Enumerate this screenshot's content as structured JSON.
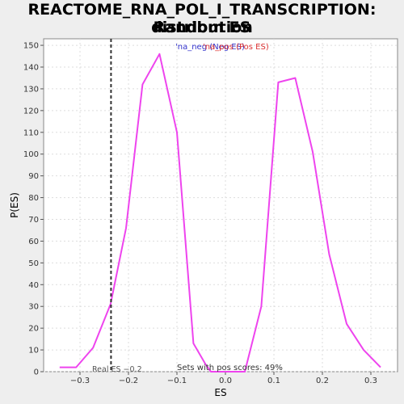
{
  "chart_data": {
    "type": "line",
    "title_line1": "REACTOME_RNA_POL_I_TRANSCRIPTION: Random ES",
    "title_line2": "distribution",
    "xlabel": "ES",
    "ylabel": "P(ES)",
    "xlim": [
      -0.375,
      0.355
    ],
    "ylim": [
      0,
      153
    ],
    "xticks": [
      -0.3,
      -0.2,
      -0.1,
      0.0,
      0.1,
      0.2,
      0.3
    ],
    "xtick_labels": [
      "−0.3",
      "−0.2",
      "−0.1",
      "0.0",
      "0.1",
      "0.2",
      "0.3"
    ],
    "yticks": [
      0,
      10,
      20,
      30,
      40,
      50,
      60,
      70,
      80,
      90,
      100,
      110,
      120,
      130,
      140,
      150
    ],
    "ytick_labels": [
      "0",
      "10",
      "20",
      "30",
      "40",
      "50",
      "60",
      "70",
      "80",
      "90",
      "100",
      "110",
      "120",
      "130",
      "140",
      "150"
    ],
    "grid": true,
    "legend": {
      "placement": "top-center",
      "entries": [
        {
          "label": "'na_neg (Neg ES)",
          "color": "#3333cc"
        },
        {
          "label": "'na_pos (Pos ES)",
          "color": "#dd3333"
        }
      ]
    },
    "series": [
      {
        "color": "#ee44ee",
        "x": [
          -0.342,
          -0.308,
          -0.273,
          -0.237,
          -0.205,
          -0.171,
          -0.136,
          -0.1,
          -0.066,
          -0.04,
          -0.03,
          0.04,
          0.074,
          0.109,
          0.144,
          0.18,
          0.214,
          0.25,
          0.285,
          0.32
        ],
        "y": [
          2,
          2,
          11,
          31,
          66,
          132,
          146,
          110,
          13,
          3,
          0,
          0,
          30,
          133,
          135,
          101,
          54,
          22,
          10,
          2
        ]
      }
    ],
    "real_es": {
      "value": -0.236,
      "label": "Real ES −0.2"
    },
    "annotation": "Sets with pos scores: 49%"
  }
}
